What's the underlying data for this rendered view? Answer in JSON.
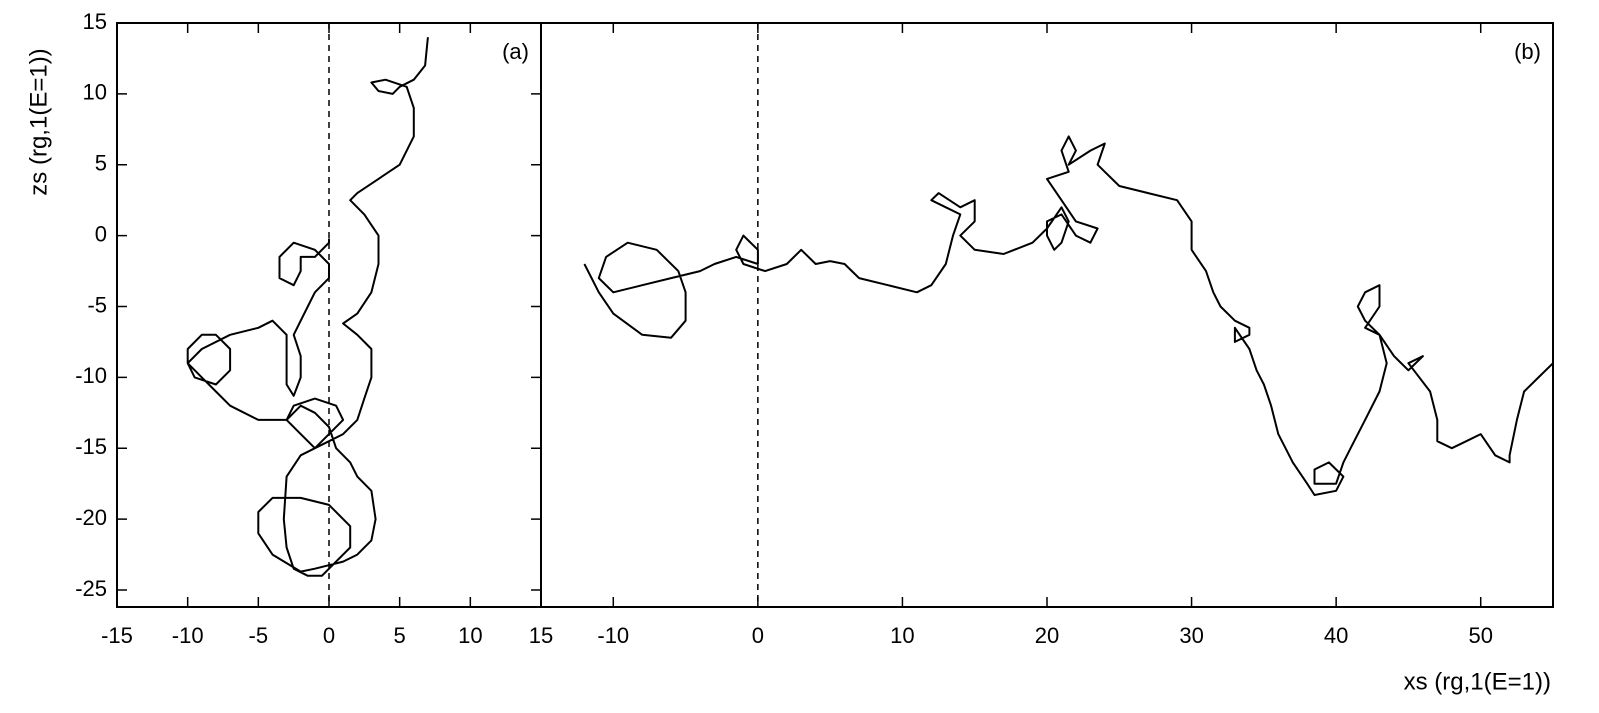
{
  "chart_data": [
    {
      "type": "line",
      "panel_label": "(a)",
      "y_label": "zs (rg,1(E=1))",
      "xlim": [
        -15,
        15
      ],
      "xticks": [
        -15,
        -10,
        -5,
        0,
        5,
        10,
        15
      ],
      "ylim": [
        -26.2,
        15
      ],
      "yticks": [
        -25,
        -20,
        -15,
        -10,
        -5,
        0,
        5,
        10,
        15
      ],
      "vlines": [
        0
      ],
      "color": "#000000",
      "series": [
        {
          "name": null,
          "color": "#000000",
          "x": [
            7,
            6.8,
            6,
            5,
            4.5,
            3.5,
            3,
            4,
            5.5,
            6,
            6,
            5,
            3.5,
            2,
            1.5,
            2.5,
            3.5,
            3.5,
            3,
            2,
            1,
            2,
            3,
            3,
            2.5,
            2,
            1,
            0,
            -1,
            -2,
            -3,
            -2,
            -1,
            0,
            0.5,
            1.5,
            2,
            3,
            3.3,
            3,
            2,
            1,
            -1,
            -2,
            -4,
            -5,
            -5,
            -4,
            -2,
            0,
            1.5,
            1.5,
            0.5,
            -0.5,
            -1.5,
            -2.5,
            -3,
            -3.2,
            -3,
            -2,
            -1,
            0,
            1,
            0.5,
            -1,
            -2.5,
            -3,
            -5,
            -7,
            -8,
            -9,
            -10,
            -10,
            -9,
            -8,
            -7,
            -7,
            -8,
            -9.5,
            -10,
            -9,
            -7,
            -5,
            -4,
            -3,
            -3,
            -3,
            -2.5,
            -2,
            -2,
            -2.5,
            -2,
            -1.5,
            -1,
            0,
            0,
            -1,
            -2.5,
            -3.5,
            -3.5,
            -2.5,
            -2,
            -2,
            -1,
            0,
            0
          ],
          "values": [
            14,
            12,
            11,
            10.5,
            10,
            10.2,
            10.8,
            11,
            10.5,
            9,
            7,
            5,
            4,
            3,
            2.5,
            1.5,
            0,
            -2,
            -4,
            -5.5,
            -6.2,
            -7,
            -8,
            -10,
            -11.5,
            -13,
            -14,
            -14.5,
            -15,
            -14,
            -13,
            -12,
            -12.5,
            -13.5,
            -15,
            -16,
            -17,
            -18,
            -20,
            -21.5,
            -22.5,
            -23,
            -23.5,
            -23.7,
            -22.5,
            -21,
            -19.5,
            -18.5,
            -18.5,
            -19,
            -20.5,
            -22,
            -23,
            -24,
            -24,
            -23.5,
            -22,
            -20,
            -17,
            -15.5,
            -15,
            -14,
            -13,
            -12,
            -11.5,
            -12,
            -13,
            -13,
            -12,
            -11,
            -10,
            -9,
            -8,
            -7,
            -7,
            -8,
            -9.5,
            -10.5,
            -10,
            -9,
            -8,
            -7,
            -6.5,
            -6,
            -7,
            -9,
            -10.5,
            -11.3,
            -10,
            -8.5,
            -7,
            -6,
            -5,
            -4,
            -3,
            -2,
            -1,
            -0.5,
            -1.5,
            -3,
            -3.5,
            -2.5,
            -1.5,
            -1.5,
            -0.5,
            -0.2
          ]
        }
      ]
    },
    {
      "type": "line",
      "panel_label": "(b)",
      "x_label": "xs (rg,1(E=1))",
      "xlim": [
        -15,
        55
      ],
      "xticks": [
        -10,
        0,
        10,
        20,
        30,
        40,
        50
      ],
      "ylim": [
        -26.2,
        15
      ],
      "vlines": [
        0
      ],
      "color": "#000000",
      "series": [
        {
          "name": null,
          "color": "#000000",
          "x": [
            -12,
            -11,
            -10,
            -8,
            -6,
            -5,
            -5,
            -5.5,
            -7,
            -9,
            -10.5,
            -11,
            -10,
            -8,
            -6,
            -4,
            -3,
            -1.5,
            0,
            0,
            -1,
            -1.5,
            -1,
            0.5,
            2,
            3,
            4,
            5,
            6,
            7,
            9,
            11,
            12,
            13,
            13.5,
            14,
            13,
            12,
            12.5,
            14,
            15,
            15,
            14,
            15,
            17,
            19,
            20,
            21,
            21.5,
            21,
            20.5,
            20,
            20,
            21,
            22,
            23,
            23.5,
            22,
            21,
            20,
            21.5,
            21,
            21.5,
            22,
            21.5,
            23,
            24,
            23.5,
            24,
            25,
            27,
            29,
            30,
            30,
            31,
            31.5,
            32,
            33,
            34,
            34,
            33,
            33,
            34,
            34.5,
            35,
            35.5,
            36,
            37,
            38,
            38.5,
            40,
            40.5,
            39.5,
            38.5,
            38.5,
            40,
            40.5,
            41,
            42,
            43,
            43.5,
            43,
            42,
            41.5,
            42,
            43,
            43,
            42,
            43,
            44,
            45,
            46,
            45,
            46.5,
            47,
            47,
            48,
            49,
            50,
            51,
            52,
            52,
            52.5,
            53,
            54,
            55
          ],
          "values": [
            -2,
            -4,
            -5.5,
            -7,
            -7.2,
            -6,
            -4,
            -2.5,
            -1,
            -0.5,
            -1.5,
            -3,
            -4,
            -3.5,
            -3,
            -2.5,
            -2,
            -1.5,
            -2,
            -1,
            0,
            -1,
            -2,
            -2.5,
            -2,
            -1,
            -2,
            -1.8,
            -2,
            -3,
            -3.5,
            -4,
            -3.5,
            -2,
            0,
            1.5,
            2,
            2.5,
            3,
            2,
            2.5,
            1,
            0,
            -1,
            -1.3,
            -0.5,
            0.5,
            2,
            1,
            -0.5,
            -1,
            0,
            1,
            1.5,
            0,
            -0.5,
            0.5,
            1,
            2.5,
            4,
            4.5,
            6,
            7,
            6,
            5,
            6,
            6.5,
            5,
            4.5,
            3.5,
            3,
            2.5,
            1,
            -1,
            -2.5,
            -4,
            -5,
            -6,
            -6.5,
            -7,
            -7.5,
            -6.5,
            -8,
            -9.5,
            -10.5,
            -12,
            -14,
            -16,
            -17.5,
            -18.3,
            -18,
            -17,
            -16,
            -16.5,
            -17.5,
            -17.5,
            -16,
            -15,
            -13,
            -11,
            -9,
            -7,
            -6,
            -5,
            -4,
            -3.5,
            -5,
            -6.5,
            -7,
            -8.5,
            -9.5,
            -8.5,
            -9,
            -11,
            -13,
            -14.5,
            -15,
            -14.5,
            -14,
            -15.5,
            -16,
            -15.5,
            -13,
            -11,
            -10,
            -9
          ]
        }
      ]
    }
  ]
}
